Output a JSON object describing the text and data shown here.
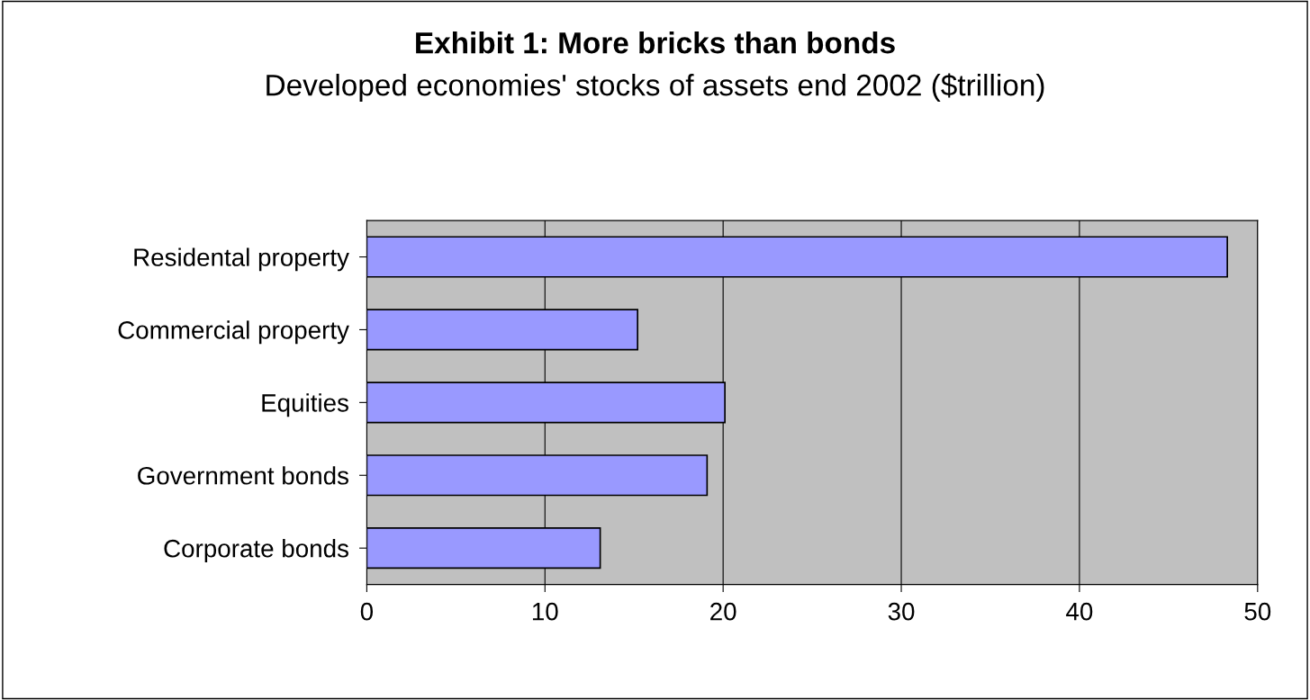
{
  "chart_data": {
    "type": "bar",
    "orientation": "horizontal",
    "title": "Exhibit 1: More bricks than bonds",
    "subtitle": "Developed economies' stocks of assets end 2002 ($trillion)",
    "categories": [
      "Residental property",
      "Commercial property",
      "Equities",
      "Government bonds",
      "Corporate bonds"
    ],
    "values": [
      48.3,
      15.2,
      20.1,
      19.1,
      13.1
    ],
    "color": "#9999ff",
    "xlim": [
      0,
      50
    ],
    "xticks": [
      0,
      10,
      20,
      30,
      40,
      50
    ],
    "grid": "x",
    "legend": false
  }
}
